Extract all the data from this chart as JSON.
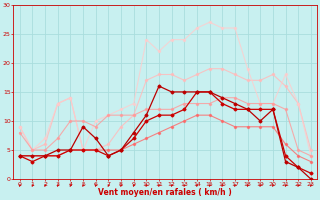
{
  "xlabel": "Vent moyen/en rafales ( km/h )",
  "background_color": "#c8f0f0",
  "grid_color": "#aadddd",
  "xlim": [
    -0.5,
    23.5
  ],
  "ylim": [
    0,
    30
  ],
  "yticks": [
    0,
    5,
    10,
    15,
    20,
    25,
    30
  ],
  "xticks": [
    0,
    1,
    2,
    3,
    4,
    5,
    6,
    7,
    8,
    9,
    10,
    11,
    12,
    13,
    14,
    15,
    16,
    17,
    18,
    19,
    20,
    21,
    22,
    23
  ],
  "lines": [
    {
      "x": [
        0,
        1,
        2,
        3,
        4,
        5,
        6,
        7,
        8,
        9,
        10,
        11,
        12,
        13,
        14,
        15,
        16,
        17,
        18,
        19,
        20,
        21,
        22,
        23
      ],
      "y": [
        4,
        3,
        4,
        4,
        5,
        5,
        5,
        4,
        5,
        7,
        10,
        11,
        11,
        12,
        15,
        15,
        13,
        12,
        12,
        12,
        12,
        4,
        2,
        1
      ],
      "color": "#cc0000",
      "lw": 0.9,
      "marker": "D",
      "ms": 1.5,
      "alpha": 1.0,
      "zorder": 5
    },
    {
      "x": [
        0,
        1,
        2,
        3,
        4,
        5,
        6,
        7,
        8,
        9,
        10,
        11,
        12,
        13,
        14,
        15,
        16,
        17,
        18,
        19,
        20,
        21,
        22,
        23
      ],
      "y": [
        4,
        4,
        4,
        5,
        5,
        9,
        7,
        4,
        5,
        8,
        11,
        16,
        15,
        15,
        15,
        15,
        14,
        13,
        12,
        10,
        12,
        3,
        2,
        0
      ],
      "color": "#bb0000",
      "lw": 0.9,
      "marker": "D",
      "ms": 1.5,
      "alpha": 1.0,
      "zorder": 5
    },
    {
      "x": [
        0,
        1,
        2,
        3,
        4,
        5,
        6,
        7,
        8,
        9,
        10,
        11,
        12,
        13,
        14,
        15,
        16,
        17,
        18,
        19,
        20,
        21,
        22,
        23
      ],
      "y": [
        4,
        4,
        4,
        4,
        5,
        5,
        5,
        5,
        5,
        6,
        7,
        8,
        9,
        10,
        11,
        11,
        10,
        9,
        9,
        9,
        9,
        6,
        4,
        3
      ],
      "color": "#ff6666",
      "lw": 0.8,
      "marker": "D",
      "ms": 1.2,
      "alpha": 0.8,
      "zorder": 4
    },
    {
      "x": [
        0,
        1,
        2,
        3,
        4,
        5,
        6,
        7,
        8,
        9,
        10,
        11,
        12,
        13,
        14,
        15,
        16,
        17,
        18,
        19,
        20,
        21,
        22,
        23
      ],
      "y": [
        8,
        5,
        5,
        7,
        10,
        10,
        9,
        11,
        11,
        11,
        12,
        12,
        12,
        13,
        13,
        13,
        14,
        14,
        13,
        13,
        13,
        12,
        5,
        4
      ],
      "color": "#ff9999",
      "lw": 0.8,
      "marker": "D",
      "ms": 1.2,
      "alpha": 0.8,
      "zorder": 4
    },
    {
      "x": [
        0,
        1,
        2,
        3,
        4,
        5,
        6,
        7,
        8,
        9,
        10,
        11,
        12,
        13,
        14,
        15,
        16,
        17,
        18,
        19,
        20,
        21,
        22,
        23
      ],
      "y": [
        9,
        5,
        6,
        13,
        14,
        5,
        5,
        6,
        9,
        11,
        17,
        18,
        18,
        17,
        18,
        19,
        19,
        18,
        17,
        17,
        18,
        16,
        13,
        5
      ],
      "color": "#ffbbbb",
      "lw": 0.8,
      "marker": "D",
      "ms": 1.2,
      "alpha": 0.85,
      "zorder": 3
    },
    {
      "x": [
        0,
        1,
        2,
        3,
        4,
        5,
        6,
        7,
        8,
        9,
        10,
        11,
        12,
        13,
        14,
        15,
        16,
        17,
        18,
        19,
        20,
        21,
        22,
        23
      ],
      "y": [
        9,
        5,
        7,
        13,
        14,
        5,
        10,
        11,
        12,
        13,
        24,
        22,
        24,
        24,
        26,
        27,
        26,
        26,
        19,
        13,
        13,
        18,
        13,
        4
      ],
      "color": "#ffcccc",
      "lw": 0.8,
      "marker": "D",
      "ms": 1.2,
      "alpha": 0.8,
      "zorder": 3
    }
  ],
  "text_color": "#cc0000",
  "xlabel_fontsize": 5.5,
  "tick_labelsize": 4.5
}
